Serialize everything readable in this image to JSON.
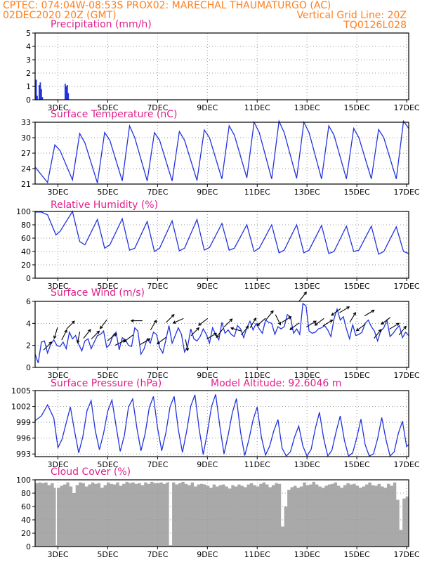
{
  "header": {
    "line1_left": "CPTEC:    074:04W-08:53S   PROX02: MARECHAL THAUMATURGO (AC)",
    "line2_left": "02DEC2020 20Z (GMT)",
    "line2_right": "Vertical Grid Line: 20Z",
    "line3_right": "TQ0126L028"
  },
  "colors": {
    "header": "#ff7f1e",
    "title": "#e0208a",
    "series": "#2233dd",
    "cloud": "#a9a9a9",
    "grid": "#999999"
  },
  "x_tick_labels": [
    "3DEC",
    "5DEC",
    "7DEC",
    "9DEC",
    "11DEC",
    "13DEC",
    "15DEC",
    "17DEC"
  ],
  "chart_data": [
    {
      "type": "bar",
      "title": "Precipitation (mm/h)",
      "ylim": [
        0,
        5
      ],
      "yticks": [
        0,
        1,
        2,
        3,
        4,
        5
      ],
      "x_unit": "hours since 02DEC2020 20Z",
      "x": [
        1,
        2,
        4,
        5,
        6,
        7,
        29,
        30,
        31,
        32
      ],
      "values": [
        1.5,
        0.3,
        1.1,
        1.3,
        0.8,
        0.2,
        1.2,
        1.0,
        1.1,
        0.5
      ],
      "grid": true
    },
    {
      "type": "line",
      "title": "Surface Temperature (nC)",
      "ylim": [
        21,
        33
      ],
      "yticks": [
        21,
        24,
        27,
        30,
        33
      ],
      "x_unit": "hours since 02DEC2020 20Z",
      "x": [
        0,
        12,
        19,
        24,
        36,
        43,
        48,
        60,
        67,
        72,
        84,
        91,
        96,
        108,
        115,
        120,
        132,
        139,
        144,
        156,
        163,
        168,
        180,
        187,
        192,
        204,
        211,
        216,
        228,
        235,
        240,
        252,
        259,
        264,
        276,
        283,
        288,
        300,
        307,
        312,
        324,
        331,
        336,
        348,
        355,
        360
      ],
      "values": [
        24.3,
        21.3,
        28.6,
        27.5,
        21.8,
        30.8,
        29.0,
        21.2,
        31.0,
        29.5,
        21.6,
        32.3,
        30.0,
        21.6,
        31.0,
        29.5,
        21.6,
        31.2,
        29.5,
        21.7,
        31.5,
        30.0,
        22.0,
        32.3,
        30.5,
        22.2,
        33.0,
        31.0,
        22.0,
        33.2,
        31.0,
        22.1,
        33.0,
        31.0,
        22.0,
        32.3,
        30.5,
        22.0,
        31.8,
        30.0,
        22.0,
        31.6,
        30.0,
        22.0,
        33.2,
        31.8
      ],
      "grid": true
    },
    {
      "type": "line",
      "title": "Relative Humidity (%)",
      "ylim": [
        0,
        100
      ],
      "yticks": [
        0,
        20,
        40,
        60,
        80,
        100
      ],
      "x_unit": "hours since 02DEC2020 20Z",
      "x": [
        0,
        6,
        12,
        20,
        24,
        36,
        43,
        48,
        60,
        67,
        72,
        84,
        91,
        96,
        108,
        115,
        120,
        132,
        139,
        144,
        156,
        163,
        168,
        180,
        187,
        192,
        204,
        211,
        216,
        228,
        235,
        240,
        252,
        259,
        264,
        276,
        283,
        288,
        300,
        307,
        312,
        324,
        331,
        336,
        348,
        355,
        360
      ],
      "values": [
        99,
        99,
        95,
        65,
        70,
        100,
        55,
        50,
        88,
        45,
        50,
        89,
        42,
        45,
        85,
        40,
        45,
        86,
        41,
        45,
        88,
        42,
        46,
        82,
        42,
        45,
        80,
        40,
        45,
        80,
        38,
        42,
        80,
        38,
        42,
        79,
        37,
        40,
        78,
        40,
        42,
        78,
        36,
        40,
        77,
        40,
        37
      ],
      "grid": true
    },
    {
      "type": "line",
      "title": "Surface Wind (m/s)",
      "ylim": [
        0,
        6
      ],
      "yticks": [
        0,
        2,
        4,
        6
      ],
      "x_unit": "hours since 02DEC2020 20Z",
      "x": [
        0,
        3,
        6,
        9,
        12,
        15,
        18,
        21,
        24,
        27,
        30,
        33,
        36,
        39,
        42,
        45,
        48,
        51,
        54,
        57,
        60,
        63,
        66,
        69,
        72,
        75,
        78,
        81,
        84,
        87,
        90,
        93,
        96,
        99,
        102,
        105,
        108,
        111,
        114,
        117,
        120,
        123,
        126,
        129,
        132,
        135,
        138,
        141,
        144,
        147,
        150,
        153,
        156,
        159,
        162,
        165,
        168,
        171,
        174,
        177,
        180,
        183,
        186,
        189,
        192,
        195,
        198,
        201,
        204,
        207,
        210,
        213,
        216,
        219,
        222,
        225,
        228,
        231,
        234,
        237,
        240,
        243,
        246,
        249,
        252,
        255,
        258,
        261,
        264,
        267,
        270,
        273,
        276,
        279,
        282,
        285,
        288,
        291,
        294,
        297,
        300,
        303,
        306,
        309,
        312,
        315,
        318,
        321,
        324,
        327,
        330,
        333,
        336,
        339,
        342,
        345,
        348,
        351,
        354,
        357,
        360
      ],
      "values": [
        1.2,
        0.4,
        2.3,
        2.4,
        1.3,
        2.1,
        2.5,
        2.0,
        1.9,
        2.3,
        1.7,
        3.2,
        2.6,
        2.9,
        2.1,
        1.5,
        2.4,
        2.6,
        1.7,
        2.3,
        2.9,
        3.0,
        3.3,
        1.8,
        2.1,
        2.9,
        3.2,
        1.6,
        2.7,
        2.5,
        2.0,
        1.9,
        3.6,
        3.3,
        1.2,
        1.7,
        2.6,
        2.2,
        3.2,
        3.0,
        1.8,
        1.3,
        2.5,
        3.8,
        2.2,
        2.9,
        3.6,
        3.0,
        1.4,
        1.9,
        3.5,
        2.6,
        2.4,
        2.8,
        3.5,
        3.0,
        2.2,
        3.6,
        3.0,
        2.5,
        4.1,
        3.1,
        3.4,
        3.0,
        2.8,
        3.8,
        3.5,
        2.7,
        3.6,
        4.2,
        3.4,
        4.0,
        3.5,
        3.1,
        4.3,
        4.1,
        4.0,
        3.0,
        3.7,
        3.5,
        3.7,
        4.8,
        4.6,
        3.1,
        3.5,
        3.0,
        5.8,
        5.6,
        3.3,
        3.1,
        3.2,
        3.5,
        3.6,
        3.8,
        3.4,
        2.8,
        4.4,
        5.3,
        4.3,
        4.6,
        3.5,
        2.6,
        3.9,
        2.9,
        3.0,
        3.2,
        4.0,
        4.3,
        3.7,
        3.3,
        2.4,
        3.3,
        3.6,
        4.3,
        2.8,
        3.1,
        3.5,
        3.8,
        2.7,
        3.2,
        2.9
      ],
      "arrows": [
        {
          "t": 12,
          "u": 1,
          "v": 1
        },
        {
          "t": 20,
          "u": -0.3,
          "v": -1
        },
        {
          "t": 28,
          "u": 0.5,
          "v": 1
        },
        {
          "t": 34,
          "u": 1,
          "v": 1
        },
        {
          "t": 42,
          "u": -0.2,
          "v": -1
        },
        {
          "t": 50,
          "u": 0.8,
          "v": 1
        },
        {
          "t": 58,
          "u": 1,
          "v": 1
        },
        {
          "t": 66,
          "u": -0.6,
          "v": -0.8
        },
        {
          "t": 74,
          "u": 1,
          "v": 0.8
        },
        {
          "t": 82,
          "u": 1,
          "v": 0.5
        },
        {
          "t": 90,
          "u": -0.8,
          "v": -0.6
        },
        {
          "t": 98,
          "u": -1,
          "v": 0
        },
        {
          "t": 106,
          "u": 1,
          "v": 0.6
        },
        {
          "t": 114,
          "u": 0.6,
          "v": 1
        },
        {
          "t": 122,
          "u": -0.8,
          "v": -0.6
        },
        {
          "t": 130,
          "u": 1,
          "v": 1
        },
        {
          "t": 138,
          "u": -0.9,
          "v": -0.4
        },
        {
          "t": 146,
          "u": 0.2,
          "v": -1
        },
        {
          "t": 154,
          "u": 1,
          "v": 1
        },
        {
          "t": 162,
          "u": -0.8,
          "v": -0.6
        },
        {
          "t": 170,
          "u": 1,
          "v": 0.6
        },
        {
          "t": 178,
          "u": -0.6,
          "v": -0.8
        },
        {
          "t": 186,
          "u": 1,
          "v": 1
        },
        {
          "t": 194,
          "u": -1,
          "v": 0.3
        },
        {
          "t": 202,
          "u": 0.8,
          "v": 1
        },
        {
          "t": 210,
          "u": 0.6,
          "v": 1
        },
        {
          "t": 218,
          "u": -0.8,
          "v": -0.7
        },
        {
          "t": 226,
          "u": 0.8,
          "v": 1
        },
        {
          "t": 234,
          "u": 0.5,
          "v": -1
        },
        {
          "t": 242,
          "u": 1,
          "v": 0.6
        },
        {
          "t": 250,
          "u": -0.8,
          "v": -0.6
        },
        {
          "t": 258,
          "u": 0.8,
          "v": 1
        },
        {
          "t": 266,
          "u": 1,
          "v": 0.6
        },
        {
          "t": 274,
          "u": -0.8,
          "v": -0.6
        },
        {
          "t": 282,
          "u": 1,
          "v": 0.6
        },
        {
          "t": 290,
          "u": -0.8,
          "v": -0.6
        },
        {
          "t": 298,
          "u": 1,
          "v": 0.6
        },
        {
          "t": 306,
          "u": 0.6,
          "v": 1
        },
        {
          "t": 314,
          "u": -0.8,
          "v": -0.6
        },
        {
          "t": 322,
          "u": 1,
          "v": 0.6
        },
        {
          "t": 330,
          "u": 0.8,
          "v": 1
        },
        {
          "t": 338,
          "u": -0.8,
          "v": -0.6
        },
        {
          "t": 346,
          "u": 1,
          "v": 0.6
        },
        {
          "t": 354,
          "u": 0.8,
          "v": 1
        }
      ],
      "grid": true
    },
    {
      "type": "line",
      "title": "Surface Pressure (hPa)",
      "annotation": "Model Altitude: 92.6046 m",
      "ylim": [
        992.5,
        1005
      ],
      "yticks": [
        993,
        996,
        999,
        1002,
        1005
      ],
      "x_unit": "hours since 02DEC2020 20Z",
      "x": [
        0,
        6,
        12,
        18,
        22,
        26,
        30,
        34,
        38,
        42,
        46,
        50,
        54,
        58,
        62,
        66,
        70,
        74,
        78,
        82,
        86,
        90,
        94,
        98,
        102,
        106,
        110,
        114,
        118,
        122,
        126,
        130,
        134,
        138,
        142,
        146,
        150,
        154,
        158,
        162,
        166,
        170,
        174,
        178,
        182,
        186,
        190,
        194,
        198,
        202,
        206,
        210,
        214,
        218,
        222,
        226,
        230,
        234,
        238,
        242,
        246,
        250,
        254,
        258,
        262,
        266,
        270,
        274,
        278,
        282,
        286,
        290,
        294,
        298,
        302,
        306,
        310,
        314,
        318,
        322,
        326,
        330,
        334,
        338,
        342,
        346,
        350,
        354,
        358,
        360
      ],
      "values": [
        999.3,
        1000.2,
        1002.3,
        999.8,
        994.2,
        995.8,
        998.9,
        1001.9,
        997.3,
        993.2,
        996.3,
        1001.2,
        1003.1,
        997.4,
        993.8,
        996.9,
        1001.1,
        1003.2,
        998.3,
        993.5,
        996.5,
        1001.9,
        1003.4,
        998.0,
        993.6,
        996.8,
        1001.8,
        1003.9,
        997.9,
        993.6,
        997.0,
        1001.9,
        1003.9,
        997.6,
        993.3,
        997.3,
        1002.1,
        1004.2,
        997.8,
        992.9,
        997.1,
        1002.0,
        1004.3,
        998.3,
        993.0,
        996.6,
        1000.8,
        1003.5,
        997.1,
        992.7,
        995.7,
        999.4,
        1001.9,
        996.2,
        992.8,
        994.5,
        997.4,
        999.5,
        994.1,
        992.6,
        993.4,
        996.2,
        998.3,
        994.5,
        992.6,
        993.9,
        997.8,
        1000.9,
        996.0,
        992.6,
        993.7,
        997.2,
        1000.2,
        995.6,
        992.6,
        993.2,
        996.1,
        999.6,
        994.8,
        992.6,
        993.0,
        995.9,
        999.9,
        995.8,
        992.6,
        993.4,
        996.9,
        999.2,
        994.4,
        994.8
      ]
    },
    {
      "type": "area",
      "title": "Cloud Cover (%)",
      "ylim": [
        0,
        100
      ],
      "yticks": [
        0,
        20,
        40,
        60,
        80,
        100
      ],
      "x_unit": "hours since 02DEC2020 20Z",
      "x": [
        0,
        3,
        6,
        9,
        12,
        15,
        18,
        20,
        21,
        24,
        27,
        30,
        33,
        36,
        39,
        42,
        45,
        48,
        51,
        54,
        57,
        60,
        63,
        66,
        69,
        72,
        75,
        78,
        81,
        84,
        87,
        90,
        93,
        96,
        99,
        102,
        105,
        108,
        111,
        114,
        117,
        120,
        123,
        126,
        128,
        129,
        132,
        135,
        138,
        141,
        144,
        147,
        150,
        153,
        156,
        159,
        162,
        165,
        168,
        171,
        174,
        177,
        180,
        183,
        186,
        189,
        192,
        195,
        198,
        201,
        204,
        207,
        210,
        213,
        216,
        219,
        222,
        225,
        228,
        231,
        234,
        237,
        240,
        243,
        246,
        249,
        252,
        255,
        258,
        261,
        264,
        267,
        270,
        273,
        276,
        279,
        282,
        285,
        288,
        291,
        294,
        297,
        300,
        303,
        306,
        309,
        312,
        315,
        318,
        321,
        324,
        327,
        330,
        333,
        336,
        339,
        342,
        345,
        348,
        351,
        354,
        357,
        360
      ],
      "values": [
        95,
        96,
        95,
        96,
        92,
        95,
        88,
        2,
        88,
        91,
        93,
        96,
        90,
        80,
        92,
        96,
        95,
        90,
        93,
        96,
        94,
        95,
        88,
        92,
        96,
        94,
        93,
        96,
        91,
        94,
        97,
        95,
        96,
        94,
        95,
        92,
        96,
        94,
        97,
        95,
        95,
        96,
        94,
        96,
        97,
        2,
        96,
        93,
        95,
        97,
        94,
        92,
        96,
        90,
        93,
        94,
        93,
        91,
        88,
        93,
        90,
        92,
        93,
        90,
        87,
        92,
        90,
        93,
        91,
        89,
        93,
        95,
        92,
        90,
        94,
        96,
        93,
        89,
        92,
        95,
        94,
        30,
        60,
        85,
        89,
        91,
        88,
        90,
        96,
        92,
        93,
        97,
        93,
        90,
        88,
        91,
        93,
        94,
        96,
        91,
        88,
        92,
        95,
        93,
        94,
        91,
        88,
        90,
        93,
        96,
        92,
        91,
        94,
        90,
        88,
        94,
        91,
        96,
        70,
        25,
        72,
        75,
        94
      ],
      "grid": true
    }
  ]
}
